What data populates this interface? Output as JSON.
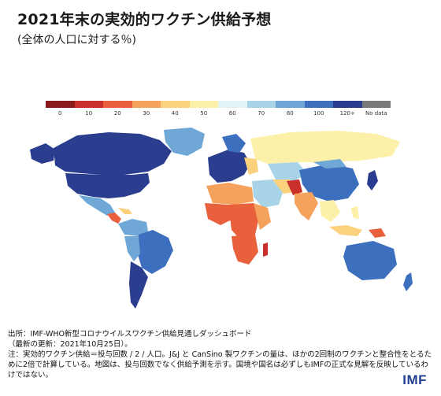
{
  "header": {
    "title": "2021年末の実効的ワクチン供給予想",
    "subtitle": "(全体の人口に対する％)"
  },
  "legend": {
    "items": [
      {
        "label": "0",
        "color": "#8b1a1a"
      },
      {
        "label": "10",
        "color": "#c9302c"
      },
      {
        "label": "20",
        "color": "#e8603c"
      },
      {
        "label": "30",
        "color": "#f5a25d"
      },
      {
        "label": "40",
        "color": "#fbd17e"
      },
      {
        "label": "50",
        "color": "#fdf0a8"
      },
      {
        "label": "60",
        "color": "#e3f2f4"
      },
      {
        "label": "70",
        "color": "#a9d3e6"
      },
      {
        "label": "80",
        "color": "#6fa8d6"
      },
      {
        "label": "100",
        "color": "#3d6fbf"
      },
      {
        "label": "120+",
        "color": "#2a3d8f"
      },
      {
        "label": "No data",
        "color": "#7a7a7a"
      }
    ]
  },
  "notes": {
    "source": "出所：IMF-WHO新型コロナウイルスワクチン供給見通しダッシュボード",
    "updated": "（最新の更新：2021年10月25日）。",
    "note": "注：実効的ワクチン供給＝投与回数 / 2 / 人口。J&J と CanSino 製ワクチンの量は、ほかの2回制のワクチンと整合性をとるために2倍で計算している。地図は、投与回数でなく供給予測を示す。国境や国名は必ずしもIMFの正式な見解を反映しているわけではない。"
  },
  "logo": {
    "text": "IMF"
  }
}
